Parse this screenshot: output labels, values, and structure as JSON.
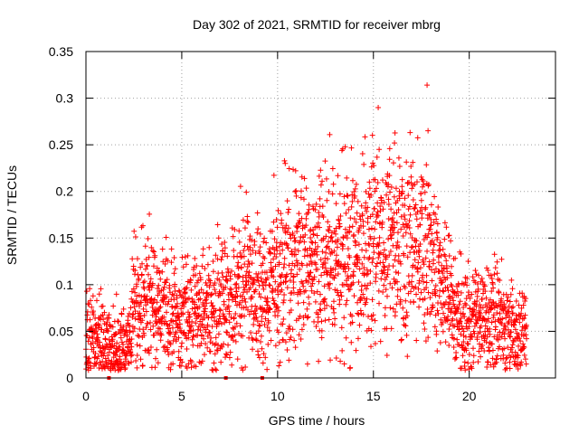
{
  "chart_data": {
    "type": "scatter",
    "title": "Day 302 of 2021, SRMTID for receiver mbrg",
    "xlabel": "GPS time / hours",
    "ylabel": "SRMTID / TECUs",
    "xlim": [
      0,
      24.5
    ],
    "ylim": [
      0,
      0.35
    ],
    "grid": true,
    "marker": "+",
    "series_color": "#ff0000",
    "xticks": [
      {
        "value": 0,
        "label": "0"
      },
      {
        "value": 5,
        "label": "5"
      },
      {
        "value": 10,
        "label": "10"
      },
      {
        "value": 15,
        "label": "15"
      },
      {
        "value": 20,
        "label": "20"
      }
    ],
    "yticks": [
      {
        "value": 0,
        "label": "0"
      },
      {
        "value": 0.05,
        "label": "0.05"
      },
      {
        "value": 0.1,
        "label": "0.1"
      },
      {
        "value": 0.15,
        "label": "0.15"
      },
      {
        "value": 0.2,
        "label": "0.2"
      },
      {
        "value": 0.25,
        "label": "0.25"
      },
      {
        "value": 0.3,
        "label": "0.3"
      },
      {
        "value": 0.35,
        "label": "0.35"
      }
    ],
    "envelope": {
      "description": "approximate median SRMTID (TECU) vs GPS hour; points scatter around it",
      "x": [
        0,
        0.5,
        1,
        1.5,
        2,
        2.5,
        3,
        3.5,
        4,
        4.5,
        5,
        5.5,
        6,
        6.5,
        7,
        7.5,
        8,
        8.5,
        9,
        9.5,
        10,
        10.5,
        11,
        11.5,
        12,
        12.5,
        13,
        13.5,
        14,
        14.5,
        15,
        15.5,
        16,
        16.5,
        17,
        17.5,
        18,
        18.5,
        19,
        19.5,
        20,
        20.5,
        21,
        21.5,
        22,
        22.5,
        23
      ],
      "y": [
        0.055,
        0.045,
        0.035,
        0.03,
        0.03,
        0.07,
        0.085,
        0.08,
        0.07,
        0.065,
        0.065,
        0.07,
        0.07,
        0.075,
        0.08,
        0.09,
        0.1,
        0.1,
        0.09,
        0.09,
        0.11,
        0.125,
        0.12,
        0.12,
        0.125,
        0.13,
        0.13,
        0.135,
        0.13,
        0.14,
        0.15,
        0.145,
        0.15,
        0.15,
        0.15,
        0.145,
        0.13,
        0.1,
        0.085,
        0.065,
        0.055,
        0.07,
        0.065,
        0.065,
        0.06,
        0.045,
        0.05
      ]
    },
    "notable_points": [
      {
        "x": 17.8,
        "y": 0.314
      },
      {
        "x": 17.85,
        "y": 0.265
      },
      {
        "x": 15.3,
        "y": 0.245
      },
      {
        "x": 16.1,
        "y": 0.252
      },
      {
        "x": 10.4,
        "y": 0.23
      }
    ],
    "zero_points_x": [
      1.2,
      7.3,
      9.2
    ],
    "point_count": 2600
  }
}
